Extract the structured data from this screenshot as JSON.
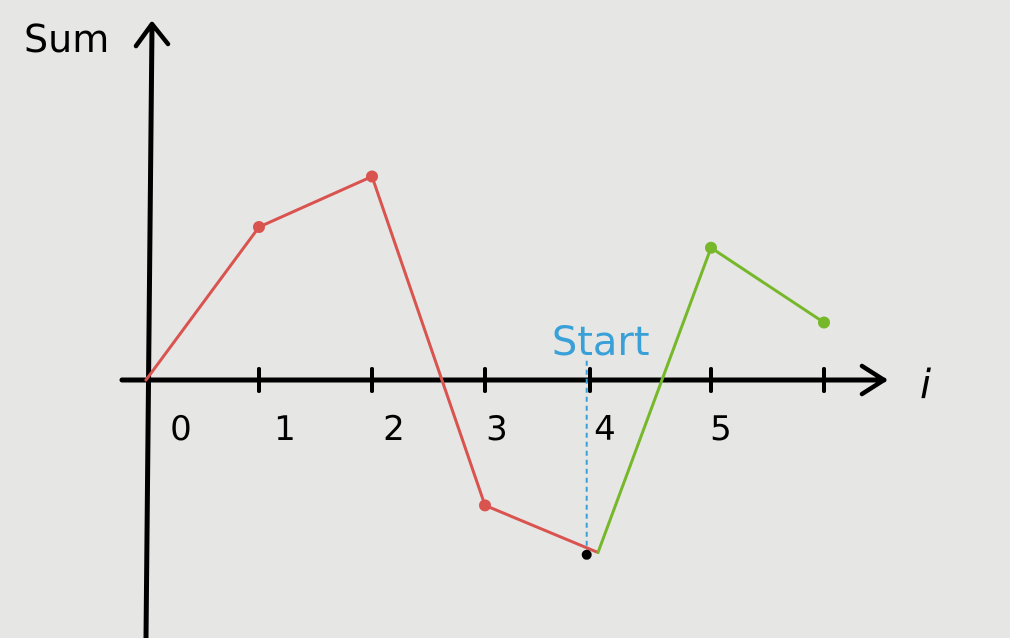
{
  "chart_data": {
    "type": "line",
    "title": "",
    "ylabel": "Sum",
    "xlabel": "i",
    "tick_labels": [
      "0",
      "1",
      "2",
      "3",
      "4",
      "5"
    ],
    "annotation": "Start",
    "annotation_x": 3.9,
    "colors": {
      "axis": "#000000",
      "red": "#d9534f",
      "green": "#76b82a",
      "start": "#3aa0d8",
      "black_point": "#000000"
    },
    "series": [
      {
        "x": [
          0,
          1,
          2,
          3,
          4
        ],
        "y": [
          0,
          1.33,
          1.77,
          -1.09,
          -1.5
        ],
        "color": "#d9534f",
        "markers": [
          false,
          true,
          true,
          true,
          false
        ]
      },
      {
        "x": [
          4,
          5,
          6
        ],
        "y": [
          -1.5,
          1.15,
          0.5
        ],
        "color": "#76b82a",
        "markers": [
          false,
          true,
          true
        ]
      }
    ],
    "special_points": [
      {
        "x": 3.9,
        "y": -1.52,
        "color": "#000000"
      }
    ],
    "x_ticks": [
      1,
      2,
      3,
      4,
      5,
      6
    ],
    "ylim": [
      -2.2,
      3.1
    ],
    "xlim": [
      0,
      6.6
    ],
    "grid": false
  }
}
